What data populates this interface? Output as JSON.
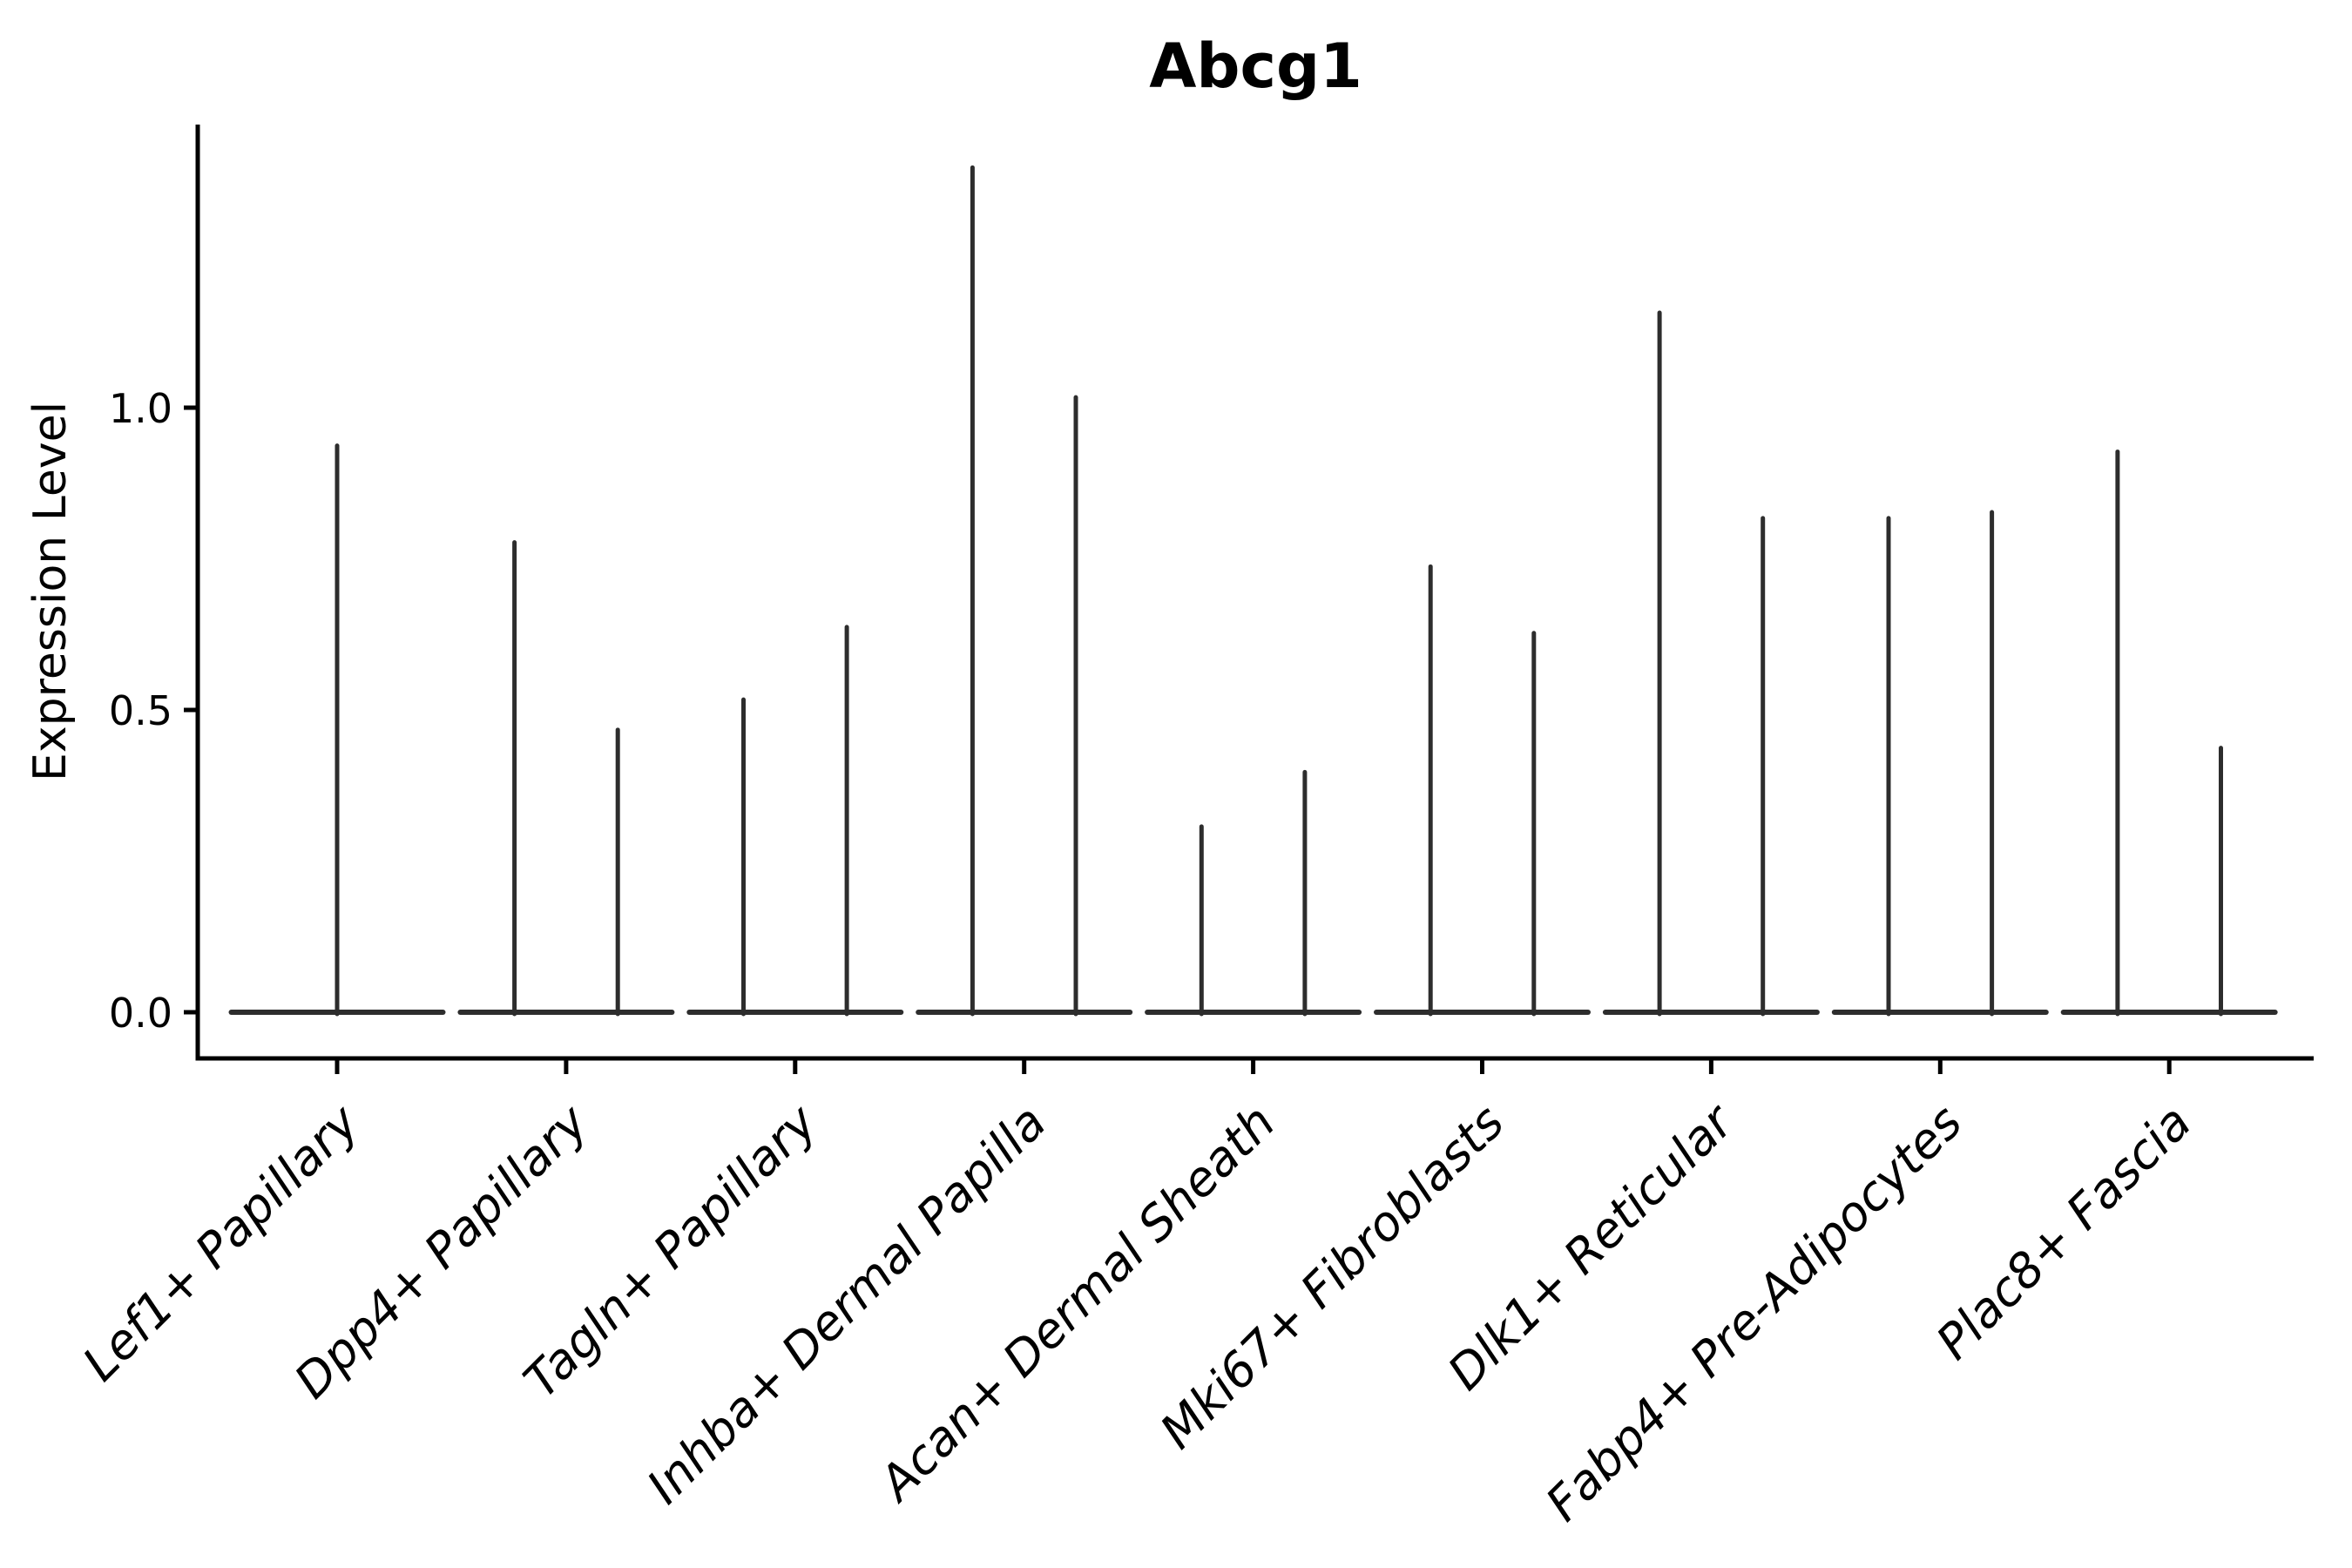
{
  "figure": {
    "kind": "matplotlib-style violin plot figure",
    "background": "#ffffff"
  },
  "chart_data": {
    "type": "violin",
    "title": "Abcg1",
    "xlabel": "",
    "ylabel": "Expression Level",
    "ytick_labels": [
      "0.0",
      "0.5",
      "1.0"
    ],
    "ytick_values": [
      0.0,
      0.5,
      1.0
    ],
    "ylim": [
      -0.08,
      1.47
    ],
    "grid": false,
    "legend_position": "none",
    "x_tick_label_rotation_deg": 45,
    "x_tick_label_style": "italic",
    "shape_note": "each violin is needle-thin: a wide flat base at expression 0 plus a thin vertical spike up to the max expression; categories 2-9 contain two side-by-side violins, category 1 has a single centered violin",
    "colors": {
      "violin_stroke": "#2d2d2d",
      "axis": "#000000",
      "text": "#000000",
      "background": "#ffffff"
    },
    "categories": [
      "Lef1+ Papillary",
      "Dpp4+ Papillary",
      "Tagln+ Papillary",
      "Inhba+ Dermal Papilla",
      "Acan+ Dermal Sheath",
      "Mki67+ Fibroblasts",
      "Dlk1+ Reticular",
      "Fabp4+ Pre-Adipocytes",
      "Plac8+ Fascia"
    ],
    "violins": [
      {
        "category": "Lef1+ Papillary",
        "spikes": [
          0.94
        ]
      },
      {
        "category": "Dpp4+ Papillary",
        "spikes": [
          0.78,
          0.47
        ]
      },
      {
        "category": "Tagln+ Papillary",
        "spikes": [
          0.52,
          0.64
        ]
      },
      {
        "category": "Inhba+ Dermal Papilla",
        "spikes": [
          1.4,
          1.02
        ]
      },
      {
        "category": "Acan+ Dermal Sheath",
        "spikes": [
          0.31,
          0.4
        ]
      },
      {
        "category": "Mki67+ Fibroblasts",
        "spikes": [
          0.74,
          0.63
        ]
      },
      {
        "category": "Dlk1+ Reticular",
        "spikes": [
          1.16,
          0.82
        ]
      },
      {
        "category": "Fabp4+ Pre-Adipocytes",
        "spikes": [
          0.82,
          0.83
        ]
      },
      {
        "category": "Plac8+ Fascia",
        "spikes": [
          0.93,
          0.44
        ]
      }
    ]
  }
}
